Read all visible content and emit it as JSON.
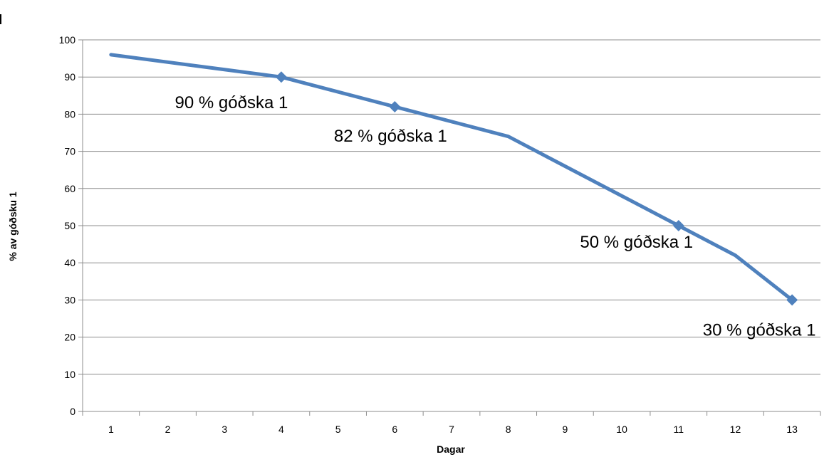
{
  "chart_data": {
    "type": "line",
    "title": "",
    "xlabel": "Dagar",
    "ylabel": "% av góðsku 1",
    "categories": [
      "1",
      "2",
      "3",
      "4",
      "5",
      "6",
      "7",
      "8",
      "9",
      "10",
      "11",
      "12",
      "13"
    ],
    "series": [
      {
        "values": [
          96,
          94,
          92,
          90,
          86,
          82,
          78,
          74,
          66,
          58,
          50,
          42,
          30
        ],
        "marked_indices": [
          3,
          5,
          10,
          12
        ]
      }
    ],
    "ylim": [
      0,
      100
    ],
    "yticks": [
      0,
      10,
      20,
      30,
      40,
      50,
      60,
      70,
      80,
      90,
      100
    ],
    "grid": true,
    "legend": "none",
    "annotations": [
      {
        "text": "90 % góðska 1",
        "category_index": 3
      },
      {
        "text": "82 % góðska 1",
        "category_index": 5
      },
      {
        "text": "50 % góðska 1",
        "category_index": 10
      },
      {
        "text": "30 % góðska 1",
        "category_index": 12
      }
    ],
    "colors": {
      "series": "#4f81bd",
      "grid": "#8c8c8c"
    }
  }
}
